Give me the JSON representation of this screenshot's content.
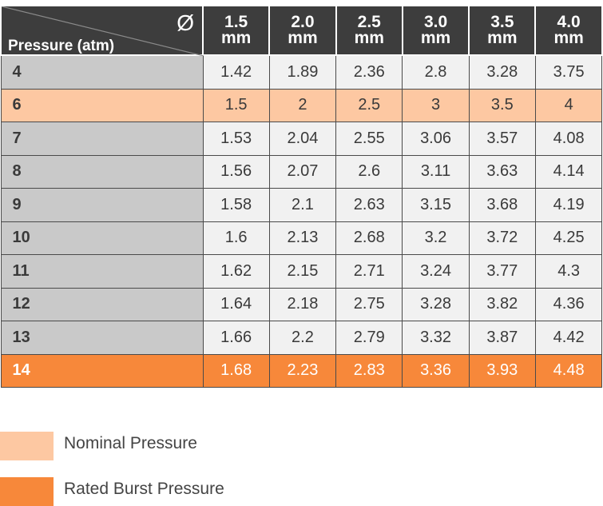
{
  "header": {
    "diameter_symbol": "Ø",
    "pressure_label": "Pressure (atm)",
    "columns": [
      {
        "value": "1.5",
        "unit": "mm"
      },
      {
        "value": "2.0",
        "unit": "mm"
      },
      {
        "value": "2.5",
        "unit": "mm"
      },
      {
        "value": "3.0",
        "unit": "mm"
      },
      {
        "value": "3.5",
        "unit": "mm"
      },
      {
        "value": "4.0",
        "unit": "mm"
      }
    ]
  },
  "rows": [
    {
      "pressure": "4",
      "type": "normal",
      "values": [
        "1.42",
        "1.89",
        "2.36",
        "2.8",
        "3.28",
        "3.75"
      ]
    },
    {
      "pressure": "6",
      "type": "nominal",
      "values": [
        "1.5",
        "2",
        "2.5",
        "3",
        "3.5",
        "4"
      ]
    },
    {
      "pressure": "7",
      "type": "normal",
      "values": [
        "1.53",
        "2.04",
        "2.55",
        "3.06",
        "3.57",
        "4.08"
      ]
    },
    {
      "pressure": "8",
      "type": "normal",
      "values": [
        "1.56",
        "2.07",
        "2.6",
        "3.11",
        "3.63",
        "4.14"
      ]
    },
    {
      "pressure": "9",
      "type": "normal",
      "values": [
        "1.58",
        "2.1",
        "2.63",
        "3.15",
        "3.68",
        "4.19"
      ]
    },
    {
      "pressure": "10",
      "type": "normal",
      "values": [
        "1.6",
        "2.13",
        "2.68",
        "3.2",
        "3.72",
        "4.25"
      ]
    },
    {
      "pressure": "11",
      "type": "normal",
      "values": [
        "1.62",
        "2.15",
        "2.71",
        "3.24",
        "3.77",
        "4.3"
      ]
    },
    {
      "pressure": "12",
      "type": "normal",
      "values": [
        "1.64",
        "2.18",
        "2.75",
        "3.28",
        "3.82",
        "4.36"
      ]
    },
    {
      "pressure": "13",
      "type": "normal",
      "values": [
        "1.66",
        "2.2",
        "2.79",
        "3.32",
        "3.87",
        "4.42"
      ]
    },
    {
      "pressure": "14",
      "type": "burst",
      "values": [
        "1.68",
        "2.23",
        "2.83",
        "3.36",
        "3.93",
        "4.48"
      ]
    }
  ],
  "legend": [
    {
      "label": "Nominal Pressure",
      "color": "#fdc8a2"
    },
    {
      "label": "Rated Burst Pressure",
      "color": "#f7883a"
    }
  ],
  "colors": {
    "header_bg": "#3d3d3d",
    "row_head_bg": "#c9c9c9",
    "cell_bg": "#f1f1f1",
    "nominal": "#fdc8a2",
    "burst": "#f7883a"
  }
}
